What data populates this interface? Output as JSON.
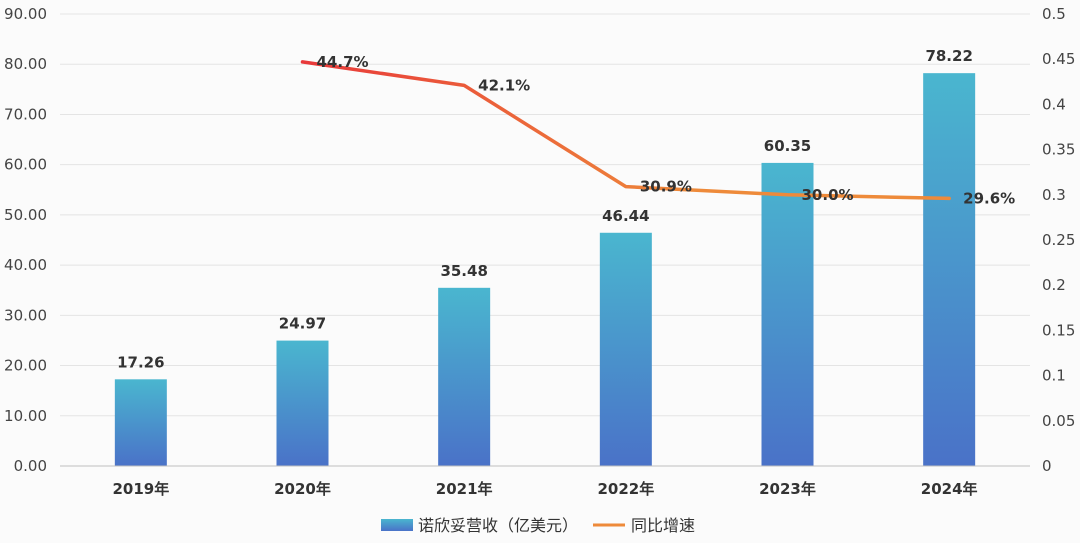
{
  "chart_data": {
    "type": "bar",
    "title": "",
    "categories": [
      "2019年",
      "2020年",
      "2021年",
      "2022年",
      "2023年",
      "2024年"
    ],
    "series": [
      {
        "name": "诺欣妥营收（亿美元）",
        "type": "bar",
        "axis": "left",
        "values": [
          17.26,
          24.97,
          35.48,
          46.44,
          60.35,
          78.22
        ],
        "labels": [
          "17.26",
          "24.97",
          "35.48",
          "46.44",
          "60.35",
          "78.22"
        ],
        "color_top": "#4ab6cf",
        "color_bottom": "#4a72c8"
      },
      {
        "name": "同比增速",
        "type": "line",
        "axis": "right",
        "values": [
          null,
          0.447,
          0.421,
          0.309,
          0.3,
          0.296
        ],
        "labels": [
          "",
          "44.7%",
          "42.1%",
          "30.9%",
          "30.0%",
          "29.6%"
        ],
        "color_start": "#e8383a",
        "color_end": "#ee8a3a"
      }
    ],
    "y_left": {
      "range": [
        0,
        90
      ],
      "ticks": [
        "0.00",
        "10.00",
        "20.00",
        "30.00",
        "40.00",
        "50.00",
        "60.00",
        "70.00",
        "80.00",
        "90.00"
      ]
    },
    "y_right": {
      "range": [
        0,
        0.5
      ],
      "ticks": [
        "0",
        "0.05",
        "0.1",
        "0.15",
        "0.2",
        "0.25",
        "0.3",
        "0.35",
        "0.4",
        "0.45",
        "0.5"
      ]
    },
    "grid": true,
    "legend_position": "bottom"
  }
}
